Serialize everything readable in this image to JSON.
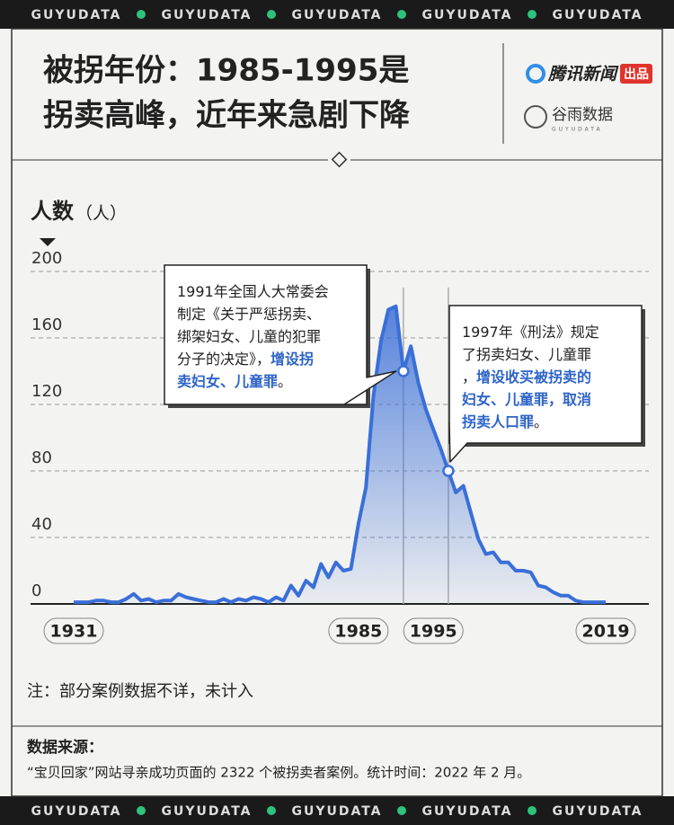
{
  "banner": "GUYUDATA",
  "header": {
    "title_lines": [
      "被拐年份：1985-1995是",
      "拐卖高峰，近年来急剧下降"
    ],
    "brand1": "腾讯新闻",
    "brand1_tag": "出品",
    "brand2": "谷雨数据",
    "brand2_sub": "GUYUDATA"
  },
  "chart_data": {
    "type": "line",
    "y_label": "人数",
    "y_unit": "（人）",
    "categories": [
      "1931",
      null,
      null,
      null,
      null,
      null,
      null,
      null,
      null,
      null,
      null,
      null,
      null,
      null,
      null,
      null,
      null,
      null,
      null,
      null,
      null,
      null,
      null,
      null,
      null,
      null,
      null,
      null,
      null,
      null,
      null,
      null,
      null,
      null,
      null,
      null,
      null,
      null,
      "1985",
      null,
      null,
      null,
      null,
      null,
      null,
      null,
      null,
      null,
      "1995",
      null,
      null,
      null,
      null,
      null,
      null,
      null,
      null,
      null,
      null,
      null,
      null,
      null,
      null,
      null,
      null,
      null,
      null,
      null,
      null,
      null,
      null,
      "2019"
    ],
    "series": [
      {
        "name": "人数",
        "color": "#3a6fd8",
        "values": [
          1,
          1,
          1,
          2,
          2,
          1,
          1,
          3,
          6,
          2,
          3,
          1,
          2,
          2,
          6,
          4,
          3,
          2,
          1,
          1,
          3,
          1,
          3,
          2,
          4,
          3,
          1,
          4,
          2,
          11,
          5,
          14,
          10,
          24,
          16,
          25,
          20,
          21,
          48,
          70,
          125,
          158,
          177,
          179,
          140,
          155,
          133,
          117,
          105,
          93,
          80,
          67,
          71,
          55,
          39,
          30,
          31,
          25,
          25,
          20,
          20,
          19,
          11,
          10,
          7,
          5,
          5,
          2,
          1,
          1,
          1,
          1
        ]
      }
    ],
    "ylim": [
      0,
      200
    ],
    "yticks": [
      0,
      40,
      80,
      120,
      160,
      200
    ],
    "grid": true,
    "annotations": [
      {
        "lines": [
          [
            {
              "text": "1991年全国人大常委会"
            }
          ],
          [
            {
              "text": "制定《关于严惩拐卖、"
            }
          ],
          [
            {
              "text": "绑架妇女、儿童的犯罪"
            }
          ],
          [
            {
              "text": "分子的决定》，"
            },
            {
              "text": "增设拐",
              "color": "#2d63c8"
            }
          ],
          [
            {
              "text": "卖妇女、儿童罪",
              "color": "#2d63c8"
            },
            {
              "text": "。"
            }
          ]
        ]
      },
      {
        "lines": [
          [
            {
              "text": "1997年《刑法》规定"
            }
          ],
          [
            {
              "text": "了拐卖妇女、儿童罪"
            }
          ],
          [
            {
              "text": "，"
            },
            {
              "text": "增设收买被拐卖的",
              "color": "#2d63c8"
            }
          ],
          [
            {
              "text": "妇女、儿童罪，取消",
              "color": "#2d63c8"
            }
          ],
          [
            {
              "text": "拐卖人口罪",
              "color": "#2d63c8"
            },
            {
              "text": "。"
            }
          ]
        ]
      }
    ]
  },
  "note": "注：部分案例数据不详，未计入",
  "source": {
    "label": "数据来源：",
    "text": "“宝贝回家”网站寻亲成功页面的 2322 个被拐卖者案例。统计时间：2022 年 2 月。"
  }
}
